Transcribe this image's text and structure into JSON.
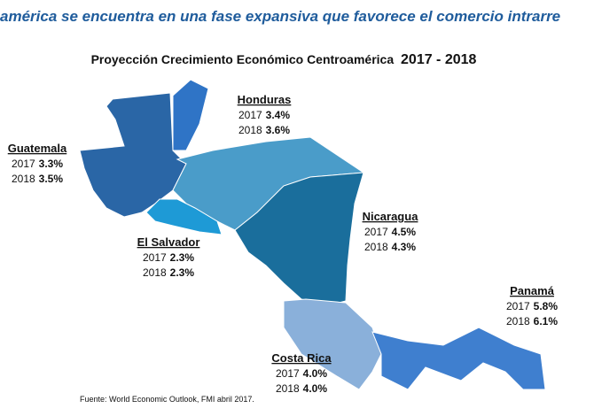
{
  "header": {
    "title": "américa se encuentra en una fase expansiva que favorece el comercio intrarre",
    "subtitle": "Proyección Crecimiento Económico Centroamérica",
    "subtitle_years": "2017 - 2018"
  },
  "countries": [
    {
      "name": "Honduras",
      "rows": [
        {
          "year": "2017",
          "value": "3.4%"
        },
        {
          "year": "2018",
          "value": "3.6%"
        }
      ]
    },
    {
      "name": "Guatemala",
      "rows": [
        {
          "year": "2017",
          "value": "3.3%"
        },
        {
          "year": "2018",
          "value": "3.5%"
        }
      ]
    },
    {
      "name": "El Salvador",
      "rows": [
        {
          "year": "2017",
          "value": "2.3%"
        },
        {
          "year": "2018",
          "value": "2.3%"
        }
      ]
    },
    {
      "name": "Nicaragua",
      "rows": [
        {
          "year": "2017",
          "value": "4.5%"
        },
        {
          "year": "2018",
          "value": "4.3%"
        }
      ]
    },
    {
      "name": "Panamá",
      "rows": [
        {
          "year": "2017",
          "value": "5.8%"
        },
        {
          "year": "2018",
          "value": "6.1%"
        }
      ]
    },
    {
      "name": "Costa Rica",
      "rows": [
        {
          "year": "2017",
          "value": "4.0%"
        },
        {
          "year": "2018",
          "value": "4.0%"
        }
      ]
    }
  ],
  "source": "Fuente:  World Economic Outlook, FMI abril 2017."
}
